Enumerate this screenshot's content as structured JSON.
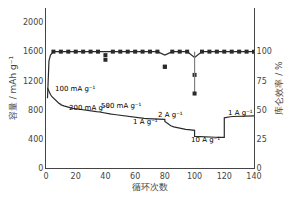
{
  "chart_data": {
    "type": "line",
    "xlabel": "循环次数",
    "ylabel": "容量 / mAh g⁻¹",
    "y2label": "库仑效率 / %",
    "xlim": [
      0,
      140
    ],
    "xticks": [
      0,
      20,
      40,
      60,
      80,
      100,
      120,
      140
    ],
    "ylim": [
      0,
      2200
    ],
    "yticks": [
      0,
      400,
      800,
      1200,
      1600,
      2000
    ],
    "y2lim": [
      0,
      137.5
    ],
    "y2ticks": [
      0,
      25,
      50,
      75,
      100
    ],
    "grid": false,
    "series": [
      {
        "type": "line",
        "line_style": "solid",
        "color": "#2a2a2a",
        "x": [
          1,
          2,
          3,
          4,
          5,
          6,
          7,
          8,
          9,
          10,
          10,
          12,
          14,
          16,
          18,
          20,
          22,
          24,
          26,
          28,
          30,
          32,
          34,
          36,
          38,
          40,
          40,
          42,
          44,
          46,
          48,
          50,
          52,
          54,
          56,
          58,
          60,
          60,
          62,
          64,
          66,
          68,
          70,
          72,
          74,
          76,
          78,
          80,
          80,
          82,
          84,
          86,
          88,
          90,
          92,
          94,
          96,
          98,
          100,
          100,
          102,
          104,
          106,
          108,
          110,
          112,
          114,
          116,
          118,
          120,
          120,
          122,
          124,
          126,
          128,
          130,
          132,
          134,
          136,
          138,
          140
        ],
        "values": [
          1100,
          1050,
          1010,
          980,
          960,
          940,
          920,
          900,
          885,
          875,
          870,
          855,
          840,
          830,
          820,
          815,
          808,
          800,
          793,
          787,
          782,
          778,
          774,
          770,
          765,
          762,
          755,
          748,
          742,
          736,
          730,
          724,
          718,
          712,
          706,
          700,
          695,
          690,
          688,
          685,
          682,
          680,
          678,
          676,
          674,
          672,
          670,
          668,
          640,
          610,
          580,
          565,
          555,
          545,
          538,
          532,
          527,
          522,
          518,
          435,
          432,
          430,
          428,
          426,
          425,
          424,
          423,
          422,
          421,
          420,
          690,
          700,
          705,
          708,
          710,
          712,
          713,
          714,
          715,
          716,
          717
        ]
      },
      {
        "type": "line",
        "line_style": "solid",
        "axis": "y2",
        "color": "#2a2a2a",
        "x": [
          1,
          2,
          3,
          4,
          5,
          6,
          8,
          10,
          12,
          15,
          20,
          25,
          30,
          35,
          40,
          45,
          50,
          55,
          60,
          65,
          70,
          75,
          80,
          85,
          90,
          95,
          100,
          105,
          110,
          115,
          120,
          125,
          130,
          135,
          140
        ],
        "values": [
          60,
          92,
          97,
          99,
          100,
          100,
          100,
          100,
          100,
          100,
          100,
          100,
          100,
          100,
          100,
          100,
          100,
          100,
          100,
          100,
          100,
          100,
          97,
          100,
          100,
          100,
          95,
          100,
          100,
          100,
          100,
          100,
          100,
          100,
          100
        ]
      },
      {
        "type": "scatter",
        "marker": "square",
        "axis": "y2",
        "color": "#2a2a2a",
        "x": [
          5,
          10,
          15,
          20,
          25,
          30,
          35,
          40,
          45,
          50,
          55,
          60,
          65,
          70,
          75,
          80,
          85,
          90,
          95,
          100,
          105,
          110,
          115,
          120,
          125,
          130,
          135,
          140
        ],
        "values": [
          100,
          100,
          100,
          100,
          100,
          100,
          100,
          97,
          100,
          100,
          100,
          100,
          100,
          100,
          100,
          87,
          100,
          100,
          100,
          80,
          100,
          100,
          100,
          100,
          100,
          100,
          100,
          100
        ]
      },
      {
        "type": "line",
        "line_style": "solid",
        "axis": "y2",
        "color": "gray",
        "x": [
          100,
          100
        ],
        "values": [
          100,
          64
        ]
      },
      {
        "type": "scatter",
        "marker": "square",
        "axis": "y2",
        "color": "#2a2a2a",
        "x": [
          100,
          40,
          80
        ],
        "values": [
          64,
          93,
          87
        ]
      }
    ],
    "annotations": [
      {
        "text": "100 mA g⁻¹",
        "x": 5,
        "y": 1080
      },
      {
        "text": "200 mA g⁻¹",
        "x": 14,
        "y": 830
      },
      {
        "text": "500 mA g⁻¹",
        "x": 36,
        "y": 850
      },
      {
        "text": "1 A g⁻¹",
        "x": 57,
        "y": 630
      },
      {
        "text": "2 A g⁻¹",
        "x": 74,
        "y": 730
      },
      {
        "text": "10 A g⁻¹",
        "x": 96,
        "y": 390
      },
      {
        "text": "1 A g⁻¹",
        "x": 121,
        "y": 760
      }
    ]
  }
}
